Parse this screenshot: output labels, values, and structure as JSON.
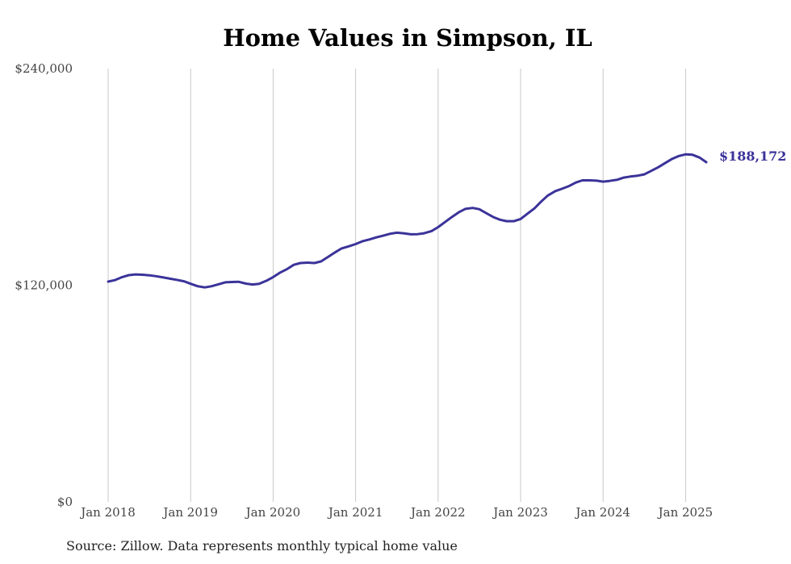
{
  "title": "Home Values in Simpson, IL",
  "source": "Source: Zillow. Data represents monthly typical home value",
  "colors": {
    "line": "#3b3399",
    "grid": "#c8c8c8",
    "axis_text": "#444444"
  },
  "chart_data": {
    "type": "line",
    "title": "Home Values in Simpson, IL",
    "xlabel": "",
    "ylabel": "",
    "ylim": [
      0,
      240000
    ],
    "y_ticks": [
      {
        "value": 0,
        "label": "$0"
      },
      {
        "value": 120000,
        "label": "$120,000"
      },
      {
        "value": 240000,
        "label": "$240,000"
      }
    ],
    "x_ticks": [
      {
        "value": 2018,
        "label": "Jan 2018"
      },
      {
        "value": 2019,
        "label": "Jan 2019"
      },
      {
        "value": 2020,
        "label": "Jan 2020"
      },
      {
        "value": 2021,
        "label": "Jan 2021"
      },
      {
        "value": 2022,
        "label": "Jan 2022"
      },
      {
        "value": 2023,
        "label": "Jan 2023"
      },
      {
        "value": 2024,
        "label": "Jan 2024"
      },
      {
        "value": 2025,
        "label": "Jan 2025"
      }
    ],
    "grid": "vertical",
    "end_label": "$188,172",
    "series": [
      {
        "x": [
          2018.0,
          2018.08,
          2018.17,
          2018.25,
          2018.33,
          2018.42,
          2018.5,
          2018.58,
          2018.67,
          2018.75,
          2018.83,
          2018.92,
          2019.0,
          2019.08,
          2019.17,
          2019.25,
          2019.33,
          2019.42,
          2019.5,
          2019.58,
          2019.67,
          2019.75,
          2019.83,
          2019.92,
          2020.0,
          2020.08,
          2020.17,
          2020.25,
          2020.33,
          2020.42,
          2020.5,
          2020.58,
          2020.67,
          2020.75,
          2020.83,
          2020.92,
          2021.0,
          2021.08,
          2021.17,
          2021.25,
          2021.33,
          2021.42,
          2021.5,
          2021.58,
          2021.67,
          2021.75,
          2021.83,
          2021.92,
          2022.0,
          2022.08,
          2022.17,
          2022.25,
          2022.33,
          2022.42,
          2022.5,
          2022.58,
          2022.67,
          2022.75,
          2022.83,
          2022.92,
          2023.0,
          2023.08,
          2023.17,
          2023.25,
          2023.33,
          2023.42,
          2023.5,
          2023.58,
          2023.67,
          2023.75,
          2023.83,
          2023.92,
          2024.0,
          2024.08,
          2024.17,
          2024.25,
          2024.33,
          2024.42,
          2024.5,
          2024.58,
          2024.67,
          2024.75,
          2024.83,
          2024.92,
          2025.0,
          2025.08,
          2025.17,
          2025.25
        ],
        "values": [
          122000,
          122800,
          124500,
          125600,
          126000,
          125800,
          125500,
          125000,
          124300,
          123600,
          123000,
          122200,
          120800,
          119500,
          118800,
          119400,
          120400,
          121600,
          121800,
          121900,
          120900,
          120400,
          120800,
          122500,
          124500,
          126900,
          129000,
          131300,
          132300,
          132500,
          132300,
          133200,
          135800,
          138200,
          140400,
          141600,
          142800,
          144300,
          145400,
          146500,
          147400,
          148500,
          149100,
          148800,
          148200,
          148300,
          148800,
          150000,
          152200,
          154900,
          157900,
          160400,
          162300,
          162800,
          162100,
          160000,
          157700,
          156300,
          155500,
          155500,
          156700,
          159500,
          162700,
          166400,
          169700,
          172100,
          173400,
          174800,
          176900,
          178100,
          178100,
          177900,
          177400,
          177800,
          178400,
          179600,
          180200,
          180700,
          181400,
          183300,
          185400,
          187600,
          189800,
          191600,
          192500,
          192300,
          190700,
          188172
        ]
      }
    ]
  }
}
